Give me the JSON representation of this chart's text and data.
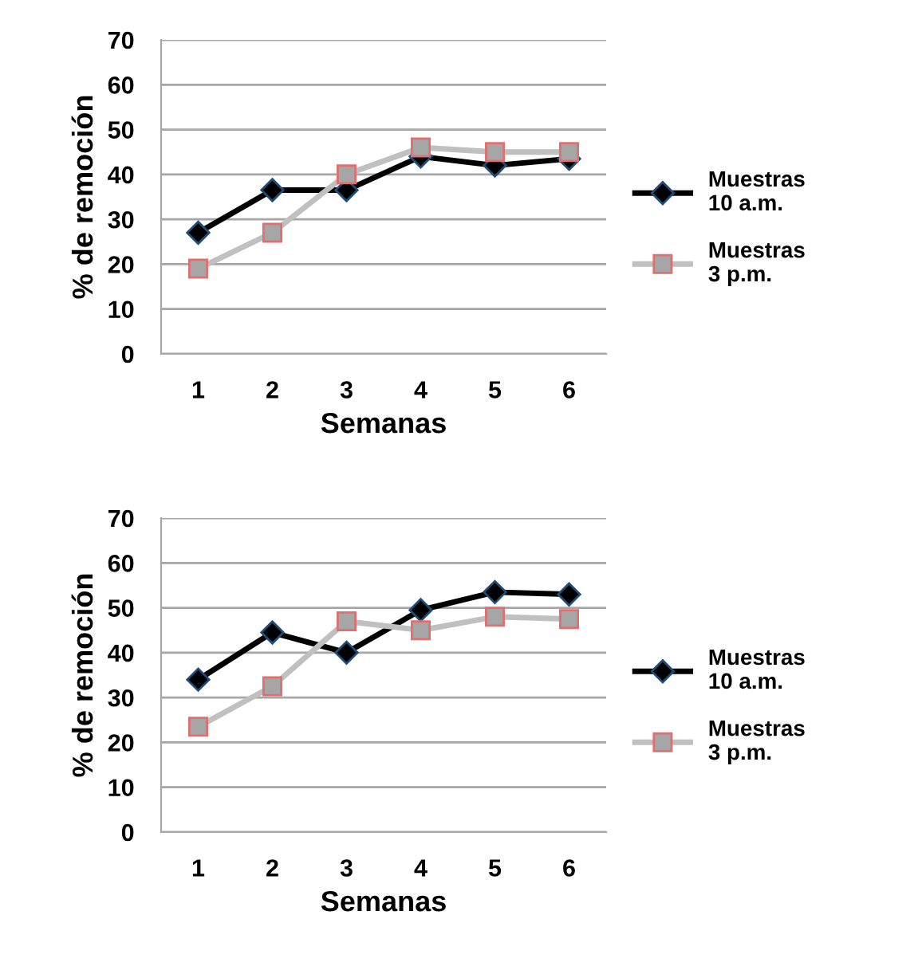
{
  "chart_data": [
    {
      "type": "line",
      "xlabel": "Semanas",
      "ylabel": "% de remoción",
      "categories": [
        "1",
        "2",
        "3",
        "4",
        "5",
        "6"
      ],
      "ylim": [
        0,
        70
      ],
      "yticks": [
        0,
        10,
        20,
        30,
        40,
        50,
        60,
        70
      ],
      "grid": "y",
      "legend": "right",
      "series": [
        {
          "name": "Muestras\n10 a.m.",
          "color": "#000000",
          "marker": "diamond",
          "values": [
            27,
            36.5,
            36.5,
            44,
            42,
            43.5
          ]
        },
        {
          "name": "Muestras\n3 p.m.",
          "color": "#c0c0c0",
          "marker": "square",
          "values": [
            19,
            27,
            40,
            46,
            45,
            45
          ]
        }
      ]
    },
    {
      "type": "line",
      "xlabel": "Semanas",
      "ylabel": "% de remoción",
      "categories": [
        "1",
        "2",
        "3",
        "4",
        "5",
        "6"
      ],
      "ylim": [
        0,
        70
      ],
      "yticks": [
        0,
        10,
        20,
        30,
        40,
        50,
        60,
        70
      ],
      "grid": "y",
      "legend": "right",
      "series": [
        {
          "name": "Muestras\n10 a.m.",
          "color": "#000000",
          "marker": "diamond",
          "values": [
            34,
            44.5,
            40,
            49.5,
            53.5,
            53
          ]
        },
        {
          "name": "Muestras\n3 p.m.",
          "color": "#c0c0c0",
          "marker": "square",
          "values": [
            23.5,
            32.5,
            47,
            45,
            48,
            47.5
          ]
        }
      ]
    }
  ]
}
